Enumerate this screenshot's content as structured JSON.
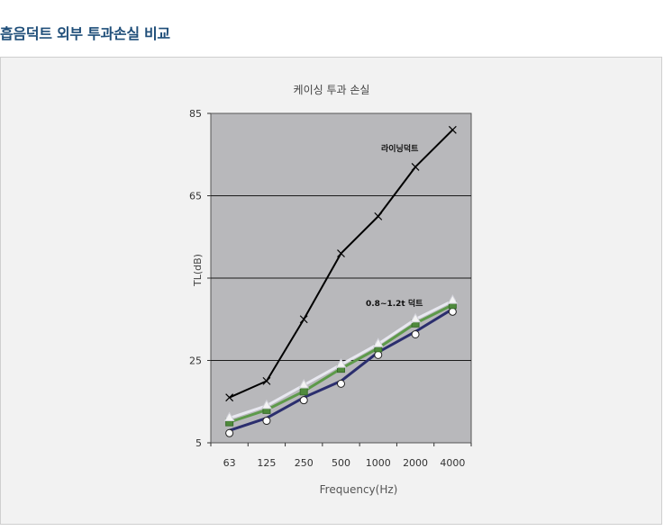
{
  "page": {
    "heading": "흡음덕트 외부 투과손실 비교"
  },
  "colors": {
    "panel_background": "#f2f2f2",
    "plot_background": "#b8b8bb",
    "grid": "#1a1a1a",
    "lining_duct": "#000000",
    "series_white": "#e8e8f0",
    "series_green": "#5d9a4a",
    "series_navy": "#2b2e6e"
  },
  "chart_data": {
    "type": "line",
    "title": "케이싱 투과 손실",
    "xlabel": "Frequency(Hz)",
    "ylabel": "TL(dB)",
    "categories": [
      "63",
      "125",
      "250",
      "500",
      "1000",
      "2000",
      "4000"
    ],
    "ylim": [
      5,
      85
    ],
    "yticks": [
      5,
      25,
      45,
      65,
      85
    ],
    "ytick_labels": [
      "5",
      "25",
      "",
      "65",
      "85"
    ],
    "grid": true,
    "annotations": [
      {
        "text": "라이닝덕트",
        "series_index": 0
      },
      {
        "text": "0.8~1.2t 덕트",
        "series_index": 1
      }
    ],
    "series": [
      {
        "values": [
          16,
          20,
          35,
          51,
          60,
          72,
          81
        ],
        "color": "#000000",
        "marker": "x"
      },
      {
        "values": [
          11,
          14,
          19,
          24,
          29,
          35,
          39.5
        ],
        "color": "#e8e8f0",
        "marker": "triangle"
      },
      {
        "values": [
          10,
          13,
          17.5,
          23,
          28,
          34,
          38.5
        ],
        "color": "#5d9a4a",
        "marker": "square"
      },
      {
        "values": [
          8,
          11,
          16,
          20,
          27,
          32,
          37.5
        ],
        "color": "#2b2e6e",
        "marker": "circle"
      }
    ]
  }
}
